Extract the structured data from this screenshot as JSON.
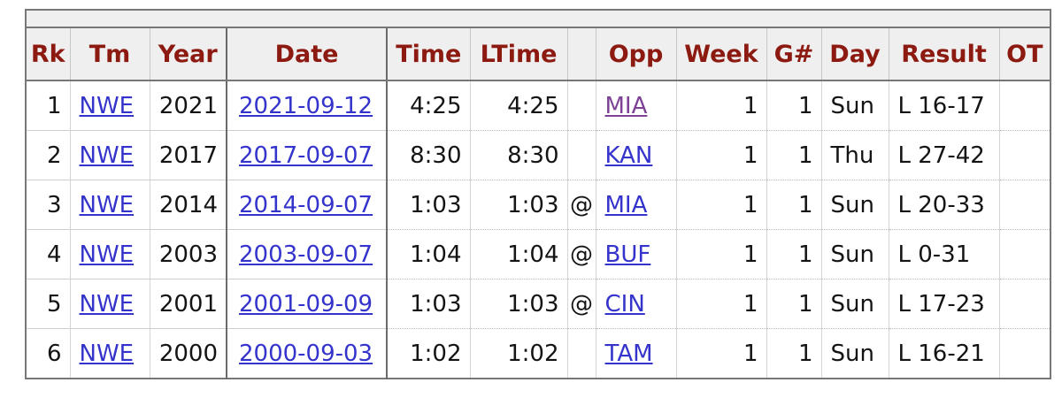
{
  "table": {
    "headers": [
      "Rk",
      "Tm",
      "Year",
      "Date",
      "Time",
      "LTime",
      "",
      "Opp",
      "Week",
      "G#",
      "Day",
      "Result",
      "OT"
    ],
    "sorted_column": "Date",
    "rows": [
      {
        "rank": "1",
        "team": "NWE",
        "year": "2021",
        "date": "2021-09-12",
        "time": "4:25",
        "ltime": "4:25",
        "at": "",
        "opp": "MIA",
        "opp_visited": true,
        "week": "1",
        "game_num": "1",
        "day": "Sun",
        "result": "L 16-17",
        "ot": ""
      },
      {
        "rank": "2",
        "team": "NWE",
        "year": "2017",
        "date": "2017-09-07",
        "time": "8:30",
        "ltime": "8:30",
        "at": "",
        "opp": "KAN",
        "opp_visited": false,
        "week": "1",
        "game_num": "1",
        "day": "Thu",
        "result": "L 27-42",
        "ot": ""
      },
      {
        "rank": "3",
        "team": "NWE",
        "year": "2014",
        "date": "2014-09-07",
        "time": "1:03",
        "ltime": "1:03",
        "at": "@",
        "opp": "MIA",
        "opp_visited": false,
        "week": "1",
        "game_num": "1",
        "day": "Sun",
        "result": "L 20-33",
        "ot": ""
      },
      {
        "rank": "4",
        "team": "NWE",
        "year": "2003",
        "date": "2003-09-07",
        "time": "1:04",
        "ltime": "1:04",
        "at": "@",
        "opp": "BUF",
        "opp_visited": false,
        "week": "1",
        "game_num": "1",
        "day": "Sun",
        "result": "L 0-31",
        "ot": ""
      },
      {
        "rank": "5",
        "team": "NWE",
        "year": "2001",
        "date": "2001-09-09",
        "time": "1:03",
        "ltime": "1:03",
        "at": "@",
        "opp": "CIN",
        "opp_visited": false,
        "week": "1",
        "game_num": "1",
        "day": "Sun",
        "result": "L 17-23",
        "ot": ""
      },
      {
        "rank": "6",
        "team": "NWE",
        "year": "2000",
        "date": "2000-09-03",
        "time": "1:02",
        "ltime": "1:02",
        "at": "",
        "opp": "TAM",
        "opp_visited": false,
        "week": "1",
        "game_num": "1",
        "day": "Sun",
        "result": "L 16-21",
        "ot": ""
      }
    ]
  },
  "colors": {
    "header_text": "#8c1a11",
    "header_bg": "#efefef",
    "sorted_header_bg": "#fbf6b5",
    "link": "#3434cc",
    "visited_link": "#7d4196",
    "body_text": "#141414"
  }
}
